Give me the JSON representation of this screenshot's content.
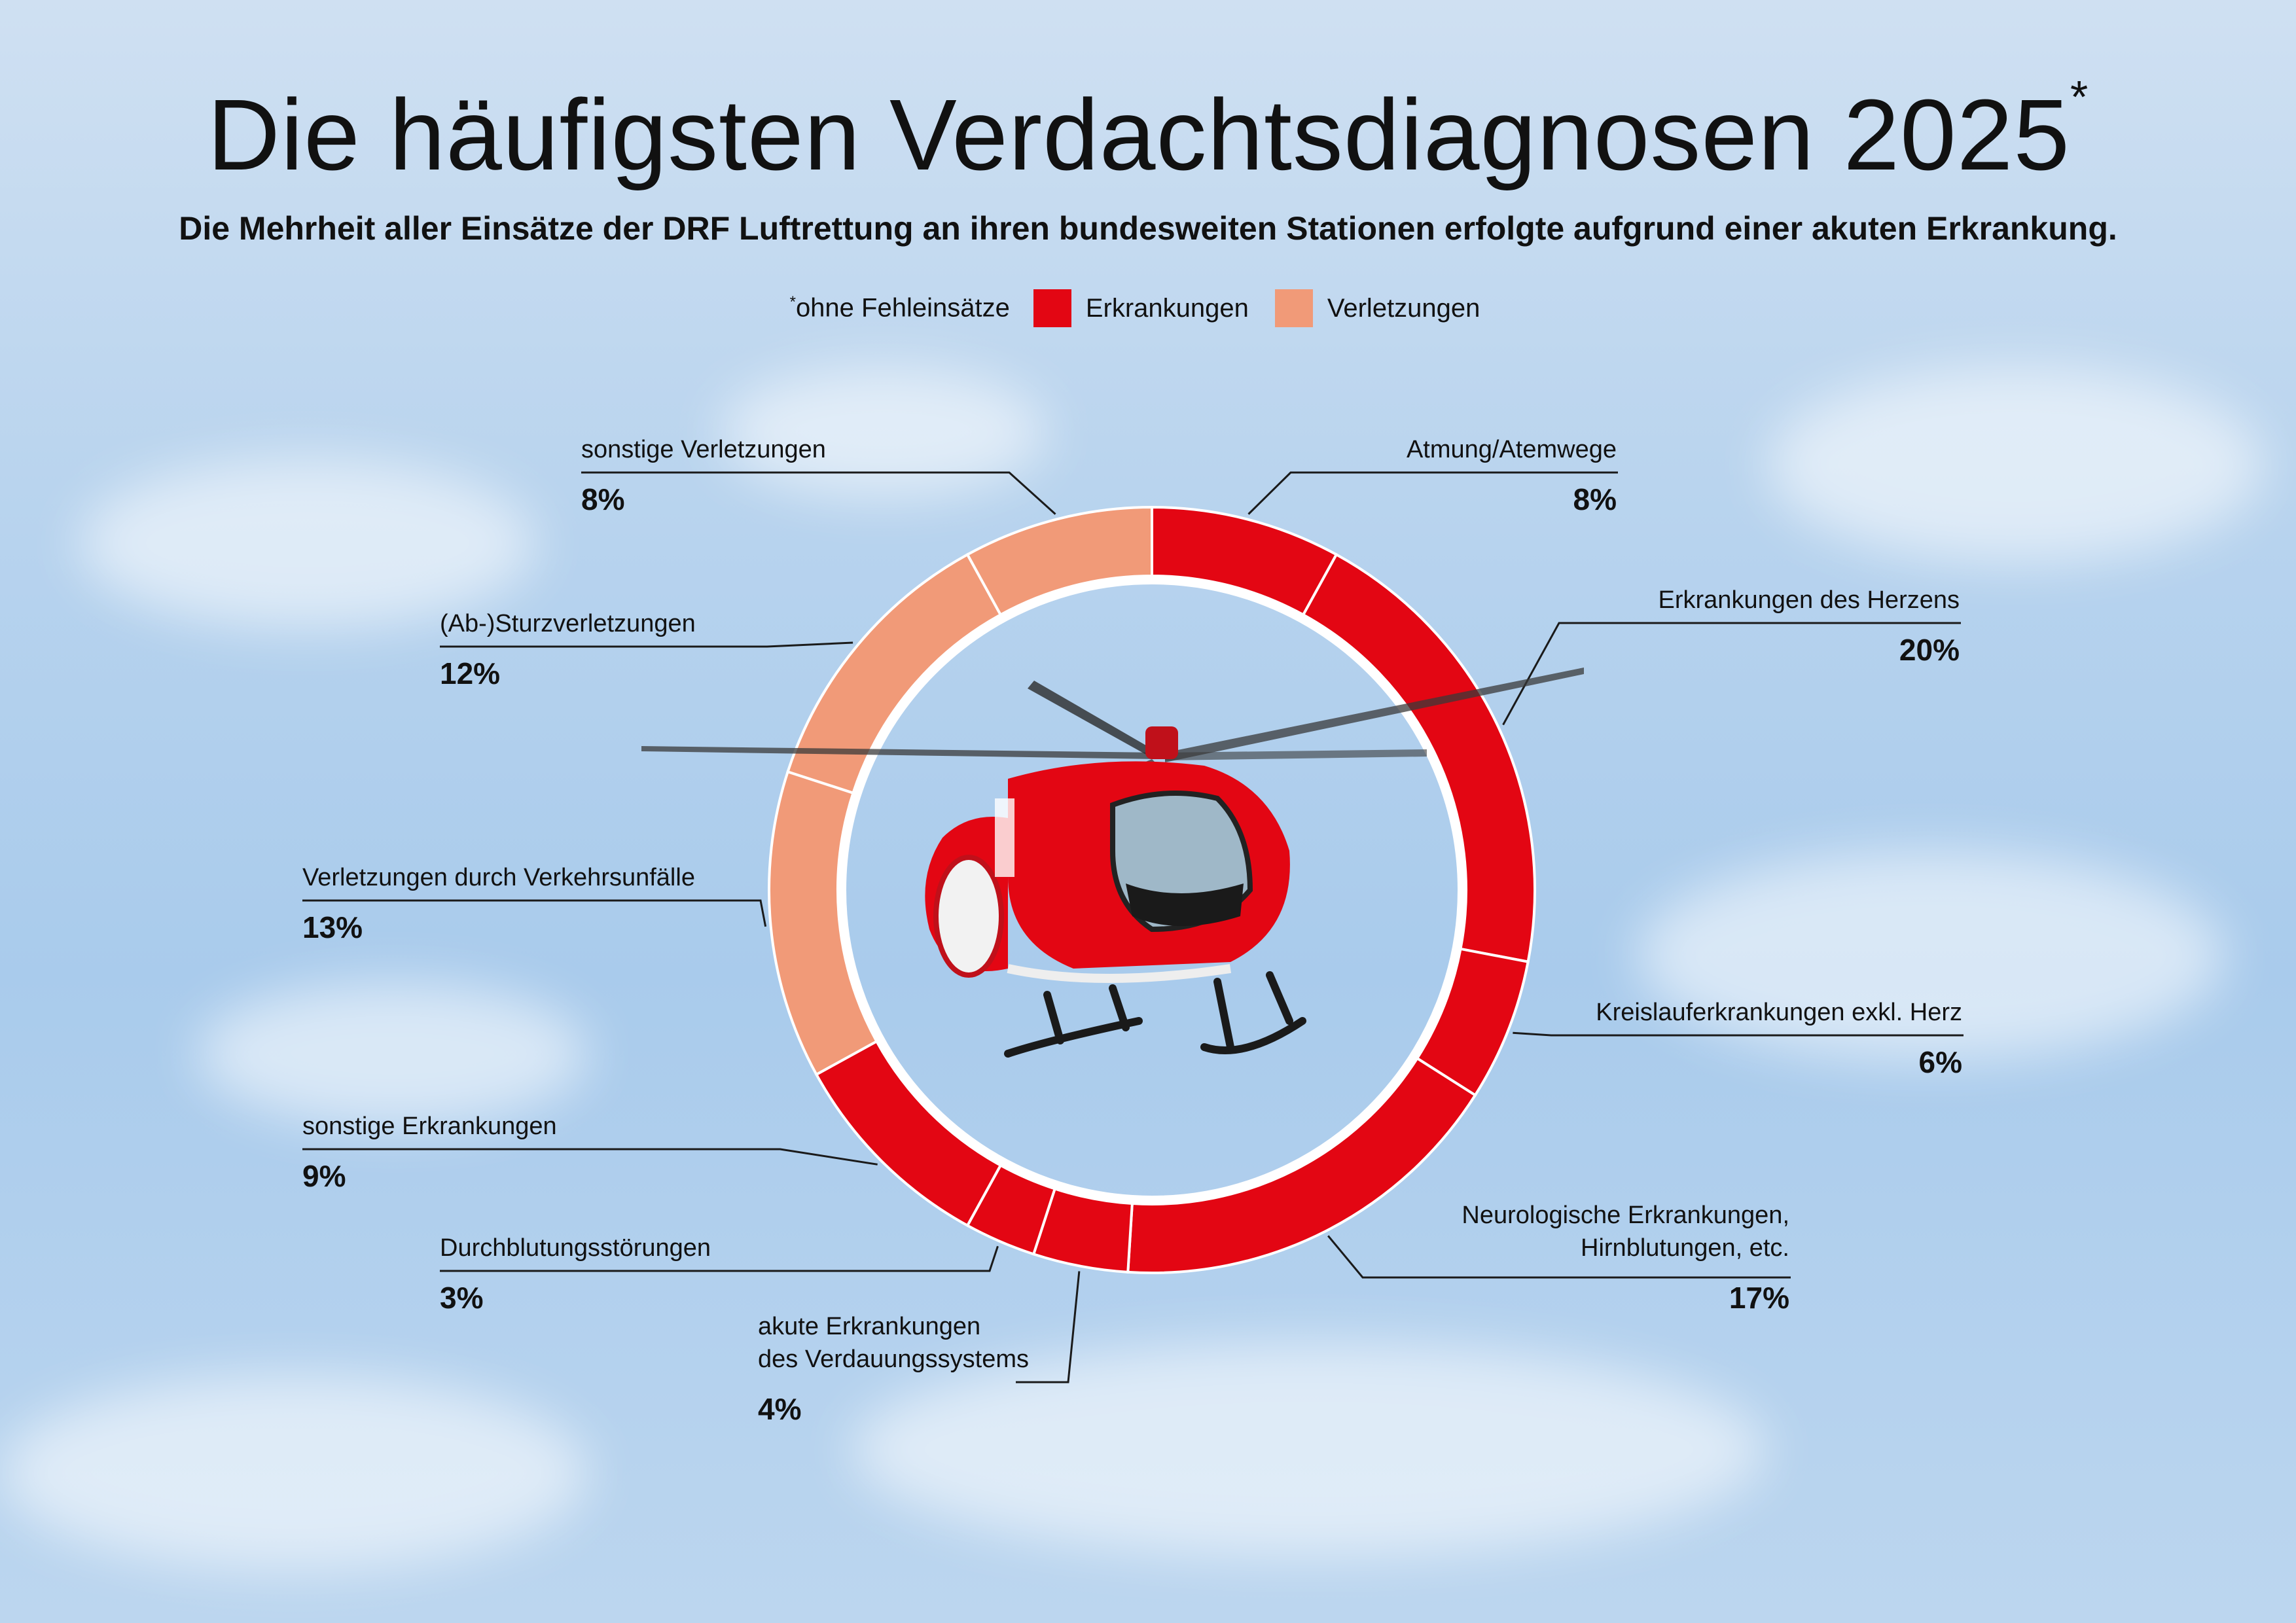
{
  "chart_data": {
    "type": "pie",
    "variant": "donut",
    "title": "Die häufigsten Verdachtsdiagnosen 2025",
    "title_marker": "*",
    "subtitle": "Die Mehrheit aller Einsätze der DRF Luftrettung an ihren bundesweiten Stationen erfolgte aufgrund einer akuten Erkrankung.",
    "legend_note_marker": "*",
    "legend_note": "ohne Fehleinsätze",
    "legend": [
      {
        "name": "Erkrankungen",
        "color": "#e30613"
      },
      {
        "name": "Verletzungen",
        "color": "#f19a78"
      }
    ],
    "unit": "%",
    "segments": [
      {
        "label": "Atmung/Atemwege",
        "value": 8,
        "display": "8%",
        "category": "Erkrankungen"
      },
      {
        "label": "Erkrankungen des Herzens",
        "value": 20,
        "display": "20%",
        "category": "Erkrankungen"
      },
      {
        "label": "Kreislauferkrankungen exkl. Herz",
        "value": 6,
        "display": "6%",
        "category": "Erkrankungen"
      },
      {
        "label": "Neurologische Erkrankungen,",
        "label_line2": "Hirnblutungen, etc.",
        "value": 17,
        "display": "17%",
        "category": "Erkrankungen"
      },
      {
        "label": "akute Erkrankungen",
        "label_line2": "des Verdauungssystems",
        "value": 4,
        "display": "4%",
        "category": "Erkrankungen"
      },
      {
        "label": "Durchblutungsstörungen",
        "value": 3,
        "display": "3%",
        "category": "Erkrankungen"
      },
      {
        "label": "sonstige Erkrankungen",
        "value": 9,
        "display": "9%",
        "category": "Erkrankungen"
      },
      {
        "label": "Verletzungen durch Verkehrsunfälle",
        "value": 13,
        "display": "13%",
        "category": "Verletzungen"
      },
      {
        "label": "(Ab-)Sturzverletzungen",
        "value": 12,
        "display": "12%",
        "category": "Verletzungen"
      },
      {
        "label": "sonstige Verletzungen",
        "value": 8,
        "display": "8%",
        "category": "Verletzungen"
      }
    ]
  }
}
